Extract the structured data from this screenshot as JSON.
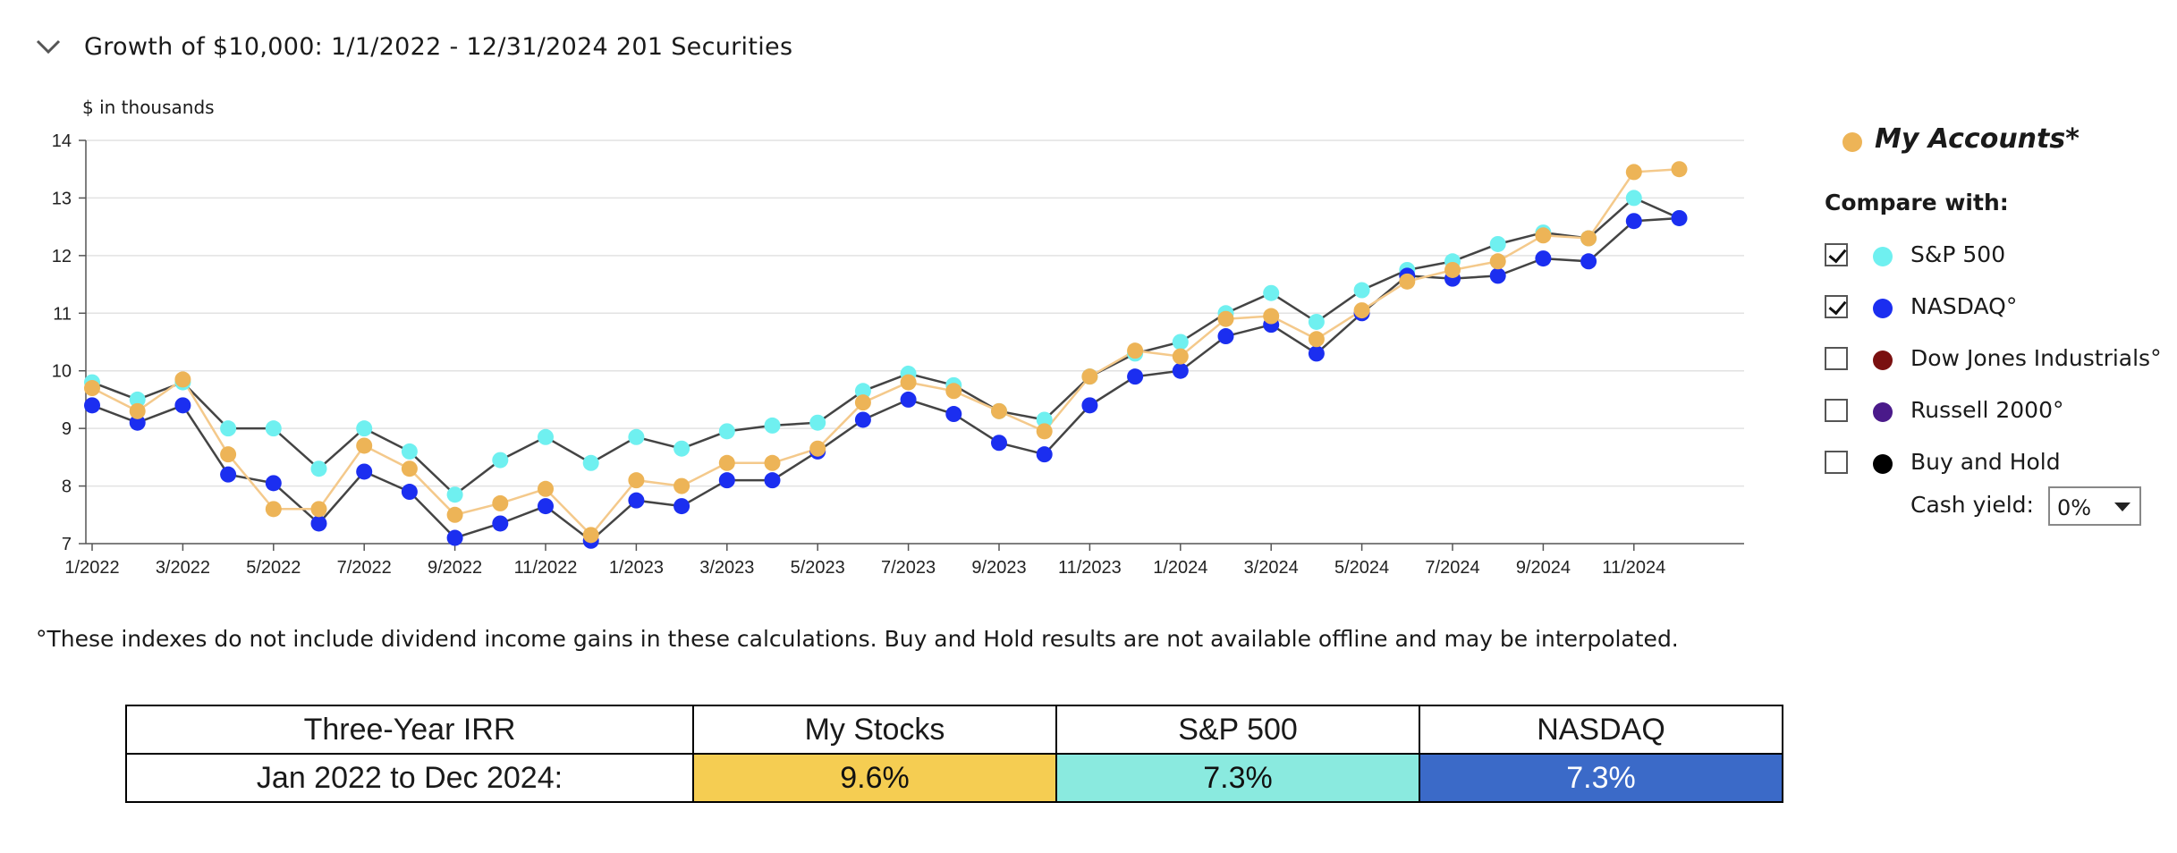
{
  "header": {
    "title": "Growth of $10,000:  1/1/2022 - 12/31/2024  201 Securities",
    "toggle_icon": "chevron-down-icon"
  },
  "chart_data": {
    "type": "line",
    "units_label": "$ in thousands",
    "ylim": [
      7,
      14
    ],
    "yticks": [
      "7",
      "8",
      "9",
      "10",
      "11",
      "12",
      "13",
      "14"
    ],
    "xtick_labels": [
      "1/2022",
      "3/2022",
      "5/2022",
      "7/2022",
      "9/2022",
      "11/2022",
      "1/2023",
      "3/2023",
      "5/2023",
      "7/2023",
      "9/2023",
      "11/2023",
      "1/2024",
      "3/2024",
      "5/2024",
      "7/2024",
      "9/2024",
      "11/2024"
    ],
    "x": [
      "1/2022",
      "2/2022",
      "3/2022",
      "4/2022",
      "5/2022",
      "6/2022",
      "7/2022",
      "8/2022",
      "9/2022",
      "10/2022",
      "11/2022",
      "12/2022",
      "1/2023",
      "2/2023",
      "3/2023",
      "4/2023",
      "5/2023",
      "6/2023",
      "7/2023",
      "8/2023",
      "9/2023",
      "10/2023",
      "11/2023",
      "12/2023",
      "1/2024",
      "2/2024",
      "3/2024",
      "4/2024",
      "5/2024",
      "6/2024",
      "7/2024",
      "8/2024",
      "9/2024",
      "10/2024",
      "11/2024",
      "12/2024"
    ],
    "grid": true,
    "series": [
      {
        "name": "S&P 500",
        "color": "#6ff0f0",
        "line": "#444444",
        "values": [
          9.8,
          9.5,
          9.8,
          9.0,
          9.0,
          8.3,
          9.0,
          8.6,
          7.85,
          8.45,
          8.85,
          8.4,
          8.85,
          8.65,
          8.95,
          9.05,
          9.1,
          9.65,
          9.95,
          9.75,
          9.3,
          9.15,
          9.9,
          10.3,
          10.5,
          11.0,
          11.35,
          10.85,
          11.4,
          11.75,
          11.9,
          12.2,
          12.4,
          12.3,
          13.0,
          12.65
        ]
      },
      {
        "name": "NASDAQ°",
        "color": "#1b2ef0",
        "line": "#444444",
        "values": [
          9.4,
          9.1,
          9.4,
          8.2,
          8.05,
          7.35,
          8.25,
          7.9,
          7.1,
          7.35,
          7.65,
          7.05,
          7.75,
          7.65,
          8.1,
          8.1,
          8.6,
          9.15,
          9.5,
          9.25,
          8.75,
          8.55,
          9.4,
          9.9,
          10.0,
          10.6,
          10.8,
          10.3,
          11.0,
          11.65,
          11.6,
          11.65,
          11.95,
          11.9,
          12.6,
          12.65
        ]
      },
      {
        "name": "My Accounts*",
        "color": "#edb457",
        "line": "#f4c98b",
        "values": [
          9.7,
          9.3,
          9.85,
          8.55,
          7.6,
          7.6,
          8.7,
          8.3,
          7.5,
          7.7,
          7.95,
          7.15,
          8.1,
          8.0,
          8.4,
          8.4,
          8.65,
          9.45,
          9.8,
          9.65,
          9.3,
          8.95,
          9.9,
          10.35,
          10.25,
          10.9,
          10.95,
          10.55,
          11.05,
          11.55,
          11.75,
          11.9,
          12.35,
          12.3,
          13.45,
          13.5
        ]
      }
    ]
  },
  "legend": {
    "my_accounts": {
      "label": "My Accounts*",
      "color": "#edb457"
    },
    "compare_title": "Compare with:",
    "items": [
      {
        "label": "S&P 500",
        "color": "#6ff0f0",
        "checked": true
      },
      {
        "label": "NASDAQ°",
        "color": "#1b2ef0",
        "checked": true
      },
      {
        "label": "Dow Jones Industrials°",
        "color": "#7a1010",
        "checked": false
      },
      {
        "label": "Russell 2000°",
        "color": "#4a1a8a",
        "checked": false
      },
      {
        "label": "Buy and Hold",
        "color": "#000000",
        "checked": false
      }
    ],
    "cash_yield_label": "Cash yield:",
    "cash_yield_value": "0%"
  },
  "footnote": "°These indexes do not include dividend income gains in these calculations. Buy and Hold results are not available offline and may be interpolated.",
  "irr_table": {
    "headers": [
      "Three-Year IRR",
      "My Stocks",
      "S&P 500",
      "NASDAQ"
    ],
    "row_label": "Jan 2022 to Dec 2024:",
    "values": [
      "9.6%",
      "7.3%",
      "7.3%"
    ],
    "colors": [
      "#f5cd52",
      "#8aeadf",
      "#3b6ac8"
    ],
    "text_colors": [
      "#111111",
      "#111111",
      "#ffffff"
    ]
  }
}
